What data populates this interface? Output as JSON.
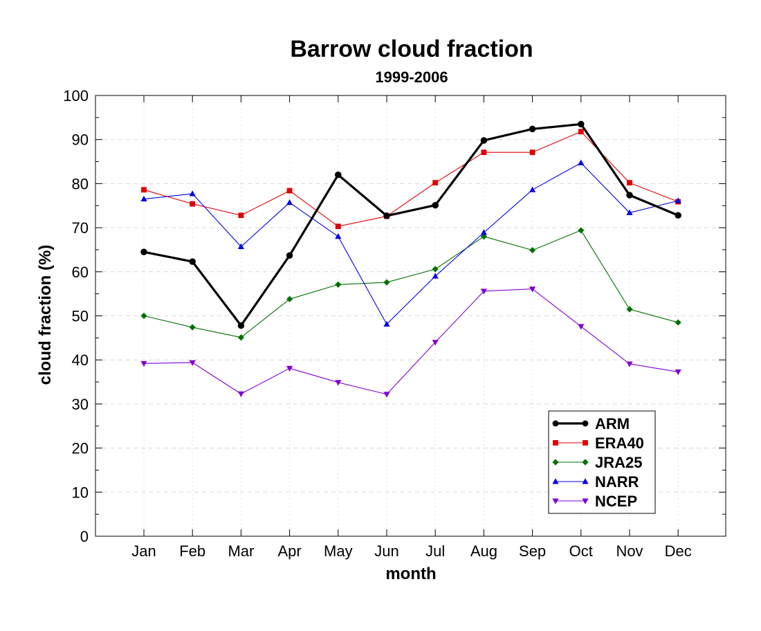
{
  "chart_data": {
    "type": "line",
    "title": "Barrow cloud fraction",
    "subtitle": "1999-2006",
    "xlabel": "month",
    "ylabel": "cloud fraction (%)",
    "ylim": [
      0,
      100
    ],
    "yticks": [
      0,
      10,
      20,
      30,
      40,
      50,
      60,
      70,
      80,
      90,
      100
    ],
    "grid": true,
    "legend_position": "bottom-right",
    "categories": [
      "Jan",
      "Feb",
      "Mar",
      "Apr",
      "May",
      "Jun",
      "Jul",
      "Aug",
      "Sep",
      "Oct",
      "Nov",
      "Dec"
    ],
    "series": [
      {
        "name": "ARM",
        "color": "#000000",
        "marker": "circle",
        "bold": true,
        "values": [
          64.5,
          62.3,
          47.8,
          63.7,
          82.0,
          72.7,
          75.1,
          89.8,
          92.4,
          93.5,
          77.4,
          72.8
        ]
      },
      {
        "name": "ERA40",
        "color": "#e00000",
        "marker": "square",
        "bold": false,
        "values": [
          78.6,
          75.4,
          72.8,
          78.4,
          70.3,
          72.6,
          80.2,
          87.1,
          87.1,
          91.8,
          80.2,
          75.9
        ]
      },
      {
        "name": "JRA25",
        "color": "#007000",
        "marker": "diamond",
        "bold": false,
        "values": [
          50.0,
          47.4,
          45.1,
          53.8,
          57.1,
          57.6,
          60.6,
          68.0,
          64.9,
          69.4,
          51.5,
          48.5
        ]
      },
      {
        "name": "NARR",
        "color": "#0000e0",
        "marker": "triangle-up",
        "bold": false,
        "values": [
          76.5,
          77.7,
          65.7,
          75.7,
          68.0,
          48.1,
          59.0,
          68.9,
          78.6,
          84.7,
          73.4,
          76.1
        ]
      },
      {
        "name": "NCEP",
        "color": "#8000d0",
        "marker": "triangle-down",
        "bold": false,
        "values": [
          39.2,
          39.4,
          32.3,
          38.1,
          34.9,
          32.2,
          44.0,
          55.6,
          56.1,
          47.6,
          39.1,
          37.3
        ]
      }
    ]
  }
}
